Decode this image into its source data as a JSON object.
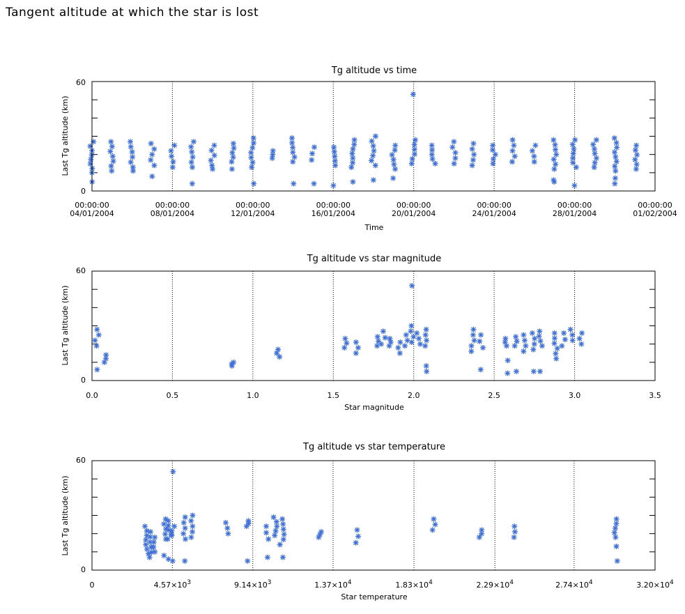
{
  "page": {
    "title": "Tangent altitude at which the star is lost"
  },
  "colors": {
    "marker": "#3f6fd8",
    "gridline": "#000000",
    "axes": "#000000"
  },
  "marker_symbol": "asterisk",
  "chart_data": [
    {
      "type": "scatter",
      "title": "Tg altitude vs time",
      "xlabel": "Time",
      "ylabel": "Last Tg altitude (km)",
      "xlim": [
        "2004-01-04T00:00",
        "2004-02-01T00:00"
      ],
      "ylim": [
        0,
        60
      ],
      "ytick_labels": [
        "0",
        "60"
      ],
      "xtick_labels": [
        {
          "line1": "00:00:00",
          "line2": "04/01/2004"
        },
        {
          "line1": "00:00:00",
          "line2": "08/01/2004"
        },
        {
          "line1": "00:00:00",
          "line2": "12/01/2004"
        },
        {
          "line1": "00:00:00",
          "line2": "16/01/2004"
        },
        {
          "line1": "00:00:00",
          "line2": "20/01/2004"
        },
        {
          "line1": "00:00:00",
          "line2": "24/01/2004"
        },
        {
          "line1": "00:00:00",
          "line2": "28/01/2004"
        },
        {
          "line1": "00:00:00",
          "line2": "01/02/2004"
        }
      ],
      "vgrid_dotted": true,
      "clusters": [
        {
          "x": "2004-01-04T00:00",
          "ymin": 10,
          "ymax": 27,
          "outliers": [
            5
          ]
        },
        {
          "x": "2004-01-05T00:00",
          "ymin": 11,
          "ymax": 27,
          "outliers": []
        },
        {
          "x": "2004-01-06T00:00",
          "ymin": 13,
          "ymax": 27,
          "outliers": [
            11
          ]
        },
        {
          "x": "2004-01-07T00:00",
          "ymin": 14,
          "ymax": 26,
          "outliers": [
            8
          ]
        },
        {
          "x": "2004-01-08T00:00",
          "ymin": 13,
          "ymax": 25,
          "outliers": []
        },
        {
          "x": "2004-01-09T00:00",
          "ymin": 13,
          "ymax": 27,
          "outliers": [
            4
          ]
        },
        {
          "x": "2004-01-10T00:00",
          "ymin": 14,
          "ymax": 25,
          "outliers": [
            12
          ]
        },
        {
          "x": "2004-01-11T00:00",
          "ymin": 16,
          "ymax": 26,
          "outliers": [
            12
          ]
        },
        {
          "x": "2004-01-12T00:00",
          "ymin": 13,
          "ymax": 29,
          "outliers": [
            4
          ]
        },
        {
          "x": "2004-01-13T00:00",
          "ymin": 18,
          "ymax": 22,
          "outliers": []
        },
        {
          "x": "2004-01-14T00:00",
          "ymin": 16,
          "ymax": 29,
          "outliers": [
            4
          ]
        },
        {
          "x": "2004-01-15T00:00",
          "ymin": 17,
          "ymax": 24,
          "outliers": [
            4
          ]
        },
        {
          "x": "2004-01-16T00:00",
          "ymin": 14,
          "ymax": 24,
          "outliers": [
            3
          ]
        },
        {
          "x": "2004-01-17T00:00",
          "ymin": 13,
          "ymax": 28,
          "outliers": [
            5
          ]
        },
        {
          "x": "2004-01-18T00:00",
          "ymin": 14,
          "ymax": 30,
          "outliers": [
            6
          ]
        },
        {
          "x": "2004-01-19T00:00",
          "ymin": 12,
          "ymax": 25,
          "outliers": [
            7
          ]
        },
        {
          "x": "2004-01-20T00:00",
          "ymin": 15,
          "ymax": 28,
          "outliers": [
            53
          ]
        },
        {
          "x": "2004-01-21T00:00",
          "ymin": 15,
          "ymax": 25,
          "outliers": []
        },
        {
          "x": "2004-01-22T00:00",
          "ymin": 15,
          "ymax": 27,
          "outliers": []
        },
        {
          "x": "2004-01-23T00:00",
          "ymin": 14,
          "ymax": 26,
          "outliers": []
        },
        {
          "x": "2004-01-24T00:00",
          "ymin": 15,
          "ymax": 25,
          "outliers": []
        },
        {
          "x": "2004-01-25T00:00",
          "ymin": 16,
          "ymax": 28,
          "outliers": []
        },
        {
          "x": "2004-01-26T00:00",
          "ymin": 16,
          "ymax": 25,
          "outliers": []
        },
        {
          "x": "2004-01-27T00:00",
          "ymin": 12,
          "ymax": 28,
          "outliers": [
            5,
            6
          ]
        },
        {
          "x": "2004-01-28T00:00",
          "ymin": 13,
          "ymax": 28,
          "outliers": [
            3
          ]
        },
        {
          "x": "2004-01-29T00:00",
          "ymin": 13,
          "ymax": 28,
          "outliers": []
        },
        {
          "x": "2004-01-30T00:00",
          "ymin": 11,
          "ymax": 29,
          "outliers": [
            4,
            7
          ]
        },
        {
          "x": "2004-01-31T00:00",
          "ymin": 12,
          "ymax": 25,
          "outliers": []
        }
      ]
    },
    {
      "type": "scatter",
      "title": "Tg altitude vs star magnitude",
      "xlabel": "Star magnitude",
      "ylabel": "Last Tg altitude (km)",
      "xlim": [
        0,
        3.5
      ],
      "ylim": [
        0,
        60
      ],
      "ytick_labels": [
        "0",
        "60"
      ],
      "xtick_values": [
        0,
        0.5,
        1,
        1.5,
        2,
        2.5,
        3,
        3.5
      ],
      "xtick_labels": [
        "0.0",
        "0.5",
        "1.0",
        "1.5",
        "2.0",
        "2.5",
        "3.0",
        "3.5"
      ],
      "vgrid_dotted": true,
      "clusters": [
        {
          "x": 0.03,
          "ymin": 19,
          "ymax": 28,
          "outliers": [
            6
          ]
        },
        {
          "x": 0.08,
          "ymin": 10,
          "ymax": 14,
          "outliers": []
        },
        {
          "x": 0.87,
          "ymin": 8,
          "ymax": 10,
          "outliers": []
        },
        {
          "x": 1.16,
          "ymin": 13,
          "ymax": 17,
          "outliers": []
        },
        {
          "x": 1.57,
          "ymin": 18,
          "ymax": 23,
          "outliers": []
        },
        {
          "x": 1.65,
          "ymin": 15,
          "ymax": 21,
          "outliers": []
        },
        {
          "x": 1.78,
          "ymin": 19,
          "ymax": 24,
          "outliers": []
        },
        {
          "x": 1.81,
          "ymin": 20,
          "ymax": 27,
          "outliers": []
        },
        {
          "x": 1.86,
          "ymin": 19,
          "ymax": 23,
          "outliers": []
        },
        {
          "x": 1.91,
          "ymin": 15,
          "ymax": 21,
          "outliers": []
        },
        {
          "x": 1.95,
          "ymin": 19,
          "ymax": 25,
          "outliers": []
        },
        {
          "x": 1.99,
          "ymin": 21,
          "ymax": 30,
          "outliers": [
            52
          ]
        },
        {
          "x": 2.03,
          "ymin": 20,
          "ymax": 26,
          "outliers": []
        },
        {
          "x": 2.08,
          "ymin": 19,
          "ymax": 28,
          "outliers": [
            5,
            8
          ]
        },
        {
          "x": 2.37,
          "ymin": 16,
          "ymax": 28,
          "outliers": []
        },
        {
          "x": 2.42,
          "ymin": 18,
          "ymax": 25,
          "outliers": [
            6
          ]
        },
        {
          "x": 2.58,
          "ymin": 19,
          "ymax": 23,
          "outliers": [
            4,
            11
          ]
        },
        {
          "x": 2.64,
          "ymin": 19,
          "ymax": 24,
          "outliers": [
            5
          ]
        },
        {
          "x": 2.69,
          "ymin": 16,
          "ymax": 25,
          "outliers": []
        },
        {
          "x": 2.74,
          "ymin": 17,
          "ymax": 26,
          "outliers": [
            5
          ]
        },
        {
          "x": 2.79,
          "ymin": 19,
          "ymax": 27,
          "outliers": [
            5
          ]
        },
        {
          "x": 2.88,
          "ymin": 12,
          "ymax": 26,
          "outliers": []
        },
        {
          "x": 2.93,
          "ymin": 19,
          "ymax": 26,
          "outliers": []
        },
        {
          "x": 2.98,
          "ymin": 22,
          "ymax": 28,
          "outliers": []
        },
        {
          "x": 3.04,
          "ymin": 20,
          "ymax": 26,
          "outliers": []
        }
      ]
    },
    {
      "type": "scatter",
      "title": "Tg altitude vs star temperature",
      "xlabel": "Star temperature",
      "ylabel": "Last Tg altitude (km)",
      "xlim": [
        0,
        32000
      ],
      "ylim": [
        0,
        60
      ],
      "ytick_labels": [
        "0",
        "60"
      ],
      "xtick_values": [
        0,
        4570,
        9140,
        13700,
        18300,
        22900,
        27400,
        32000
      ],
      "xtick_labels": [
        {
          "mant": "0",
          "exp": ""
        },
        {
          "mant": "4.57×10",
          "exp": "3"
        },
        {
          "mant": "9.14×10",
          "exp": "3"
        },
        {
          "mant": "1.37×10",
          "exp": "4"
        },
        {
          "mant": "1.83×10",
          "exp": "4"
        },
        {
          "mant": "2.29×10",
          "exp": "4"
        },
        {
          "mant": "2.74×10",
          "exp": "4"
        },
        {
          "mant": "3.20×10",
          "exp": "4"
        }
      ],
      "vgrid_dotted": true,
      "clusters": [
        {
          "x": 3100,
          "ymin": 9,
          "ymax": 24,
          "outliers": []
        },
        {
          "x": 3300,
          "ymin": 7,
          "ymax": 21,
          "outliers": []
        },
        {
          "x": 3600,
          "ymin": 10,
          "ymax": 18,
          "outliers": []
        },
        {
          "x": 4100,
          "ymin": 17,
          "ymax": 28,
          "outliers": [
            8
          ]
        },
        {
          "x": 4400,
          "ymin": 17,
          "ymax": 27,
          "outliers": [
            6
          ]
        },
        {
          "x": 4570,
          "ymin": 19,
          "ymax": 24,
          "outliers": [
            54,
            5
          ]
        },
        {
          "x": 5300,
          "ymin": 17,
          "ymax": 29,
          "outliers": [
            5
          ]
        },
        {
          "x": 5700,
          "ymin": 18,
          "ymax": 30,
          "outliers": []
        },
        {
          "x": 7700,
          "ymin": 20,
          "ymax": 26,
          "outliers": []
        },
        {
          "x": 8900,
          "ymin": 24,
          "ymax": 27,
          "outliers": [
            5
          ]
        },
        {
          "x": 10000,
          "ymin": 17,
          "ymax": 24,
          "outliers": [
            7
          ]
        },
        {
          "x": 10400,
          "ymin": 19,
          "ymax": 29,
          "outliers": []
        },
        {
          "x": 10800,
          "ymin": 14,
          "ymax": 28,
          "outliers": [
            7
          ]
        },
        {
          "x": 13000,
          "ymin": 18,
          "ymax": 21,
          "outliers": []
        },
        {
          "x": 15100,
          "ymin": 15,
          "ymax": 22,
          "outliers": []
        },
        {
          "x": 19400,
          "ymin": 22,
          "ymax": 28,
          "outliers": []
        },
        {
          "x": 22100,
          "ymin": 18,
          "ymax": 22,
          "outliers": []
        },
        {
          "x": 24100,
          "ymin": 18,
          "ymax": 24,
          "outliers": []
        },
        {
          "x": 29800,
          "ymin": 18,
          "ymax": 28,
          "outliers": [
            13,
            5
          ]
        }
      ]
    }
  ]
}
